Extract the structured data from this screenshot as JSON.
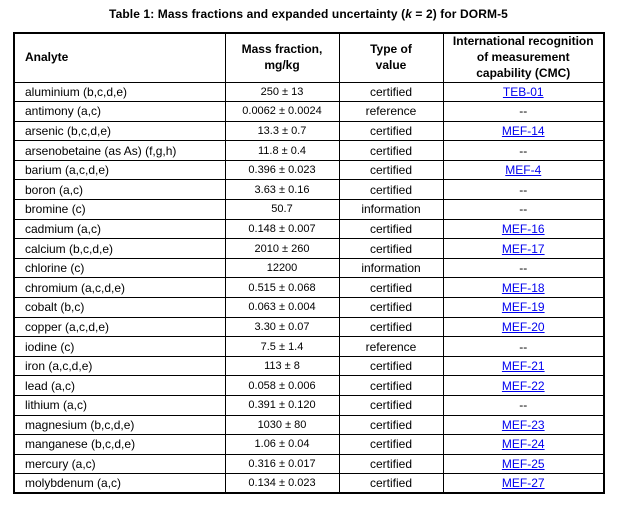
{
  "title": {
    "prefix": "Table 1: Mass fractions and expanded uncertainty (",
    "k": "k",
    "suffix": " = 2) for DORM-5"
  },
  "colors": {
    "link": "#0000EE",
    "border": "#000000",
    "text": "#000000"
  },
  "table": {
    "headers": [
      "Analyte",
      "Mass fraction,\nmg/kg",
      "Type of\nvalue",
      "International recognition\nof measurement\ncapability (CMC)"
    ],
    "no_cmc_symbol": "--",
    "rows": [
      {
        "analyte": "aluminium (b,c,d,e)",
        "mass_fraction": "250 ± 13",
        "type": "certified",
        "cmc": "TEB-01",
        "link": true
      },
      {
        "analyte": "antimony (a,c)",
        "mass_fraction": "0.0062 ± 0.0024",
        "type": "reference",
        "cmc": "--",
        "link": false
      },
      {
        "analyte": "arsenic (b,c,d,e)",
        "mass_fraction": "13.3 ± 0.7",
        "type": "certified",
        "cmc": "MEF-14",
        "link": true
      },
      {
        "analyte": "arsenobetaine (as As) (f,g,h)",
        "mass_fraction": "11.8 ± 0.4",
        "type": "certified",
        "cmc": "--",
        "link": false
      },
      {
        "analyte": "barium (a,c,d,e)",
        "mass_fraction": "0.396 ± 0.023",
        "type": "certified",
        "cmc": "MEF-4",
        "link": true
      },
      {
        "analyte": "boron (a,c)",
        "mass_fraction": "3.63 ± 0.16",
        "type": "certified",
        "cmc": "--",
        "link": false
      },
      {
        "analyte": "bromine (c)",
        "mass_fraction": "50.7",
        "type": "information",
        "cmc": "--",
        "link": false
      },
      {
        "analyte": "cadmium (a,c)",
        "mass_fraction": "0.148 ± 0.007",
        "type": "certified",
        "cmc": "MEF-16",
        "link": true
      },
      {
        "analyte": "calcium (b,c,d,e)",
        "mass_fraction": "2010 ± 260",
        "type": "certified",
        "cmc": "MEF-17",
        "link": true
      },
      {
        "analyte": "chlorine (c)",
        "mass_fraction": "12200",
        "type": "information",
        "cmc": "--",
        "link": false
      },
      {
        "analyte": "chromium (a,c,d,e)",
        "mass_fraction": "0.515 ± 0.068",
        "type": "certified",
        "cmc": "MEF-18",
        "link": true
      },
      {
        "analyte": "cobalt (b,c)",
        "mass_fraction": "0.063 ± 0.004",
        "type": "certified",
        "cmc": "MEF-19",
        "link": true
      },
      {
        "analyte": "copper (a,c,d,e)",
        "mass_fraction": "3.30 ± 0.07",
        "type": "certified",
        "cmc": "MEF-20",
        "link": true
      },
      {
        "analyte": "iodine (c)",
        "mass_fraction": "7.5 ± 1.4",
        "type": "reference",
        "cmc": "--",
        "link": false
      },
      {
        "analyte": "iron (a,c,d,e)",
        "mass_fraction": "113 ± 8",
        "type": "certified",
        "cmc": "MEF-21",
        "link": true
      },
      {
        "analyte": "lead (a,c)",
        "mass_fraction": "0.058 ± 0.006",
        "type": "certified",
        "cmc": "MEF-22",
        "link": true
      },
      {
        "analyte": "lithium (a,c)",
        "mass_fraction": "0.391 ± 0.120",
        "type": "certified",
        "cmc": "--",
        "link": false
      },
      {
        "analyte": "magnesium (b,c,d,e)",
        "mass_fraction": "1030 ± 80",
        "type": "certified",
        "cmc": "MEF-23",
        "link": true
      },
      {
        "analyte": "manganese (b,c,d,e)",
        "mass_fraction": "1.06 ± 0.04",
        "type": "certified",
        "cmc": "MEF-24",
        "link": true
      },
      {
        "analyte": "mercury (a,c)",
        "mass_fraction": "0.316 ± 0.017",
        "type": "certified",
        "cmc": "MEF-25",
        "link": true
      },
      {
        "analyte": "molybdenum (a,c)",
        "mass_fraction": "0.134 ± 0.023",
        "type": "certified",
        "cmc": "MEF-27",
        "link": true
      }
    ]
  }
}
